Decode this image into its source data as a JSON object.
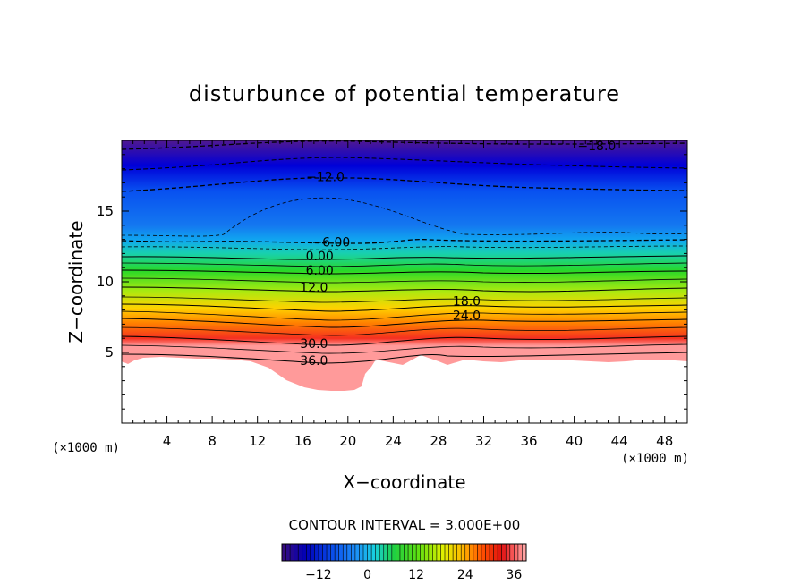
{
  "chart_data": {
    "type": "contour",
    "title": "disturbunce of potential temperature",
    "xlabel": "X−coordinate",
    "ylabel": "Z−coordinate",
    "x_unit_label": "(×1000 m)",
    "y_unit_label": "(×1000 m)",
    "xlim": [
      0,
      50
    ],
    "ylim": [
      0,
      20
    ],
    "x_ticks": [
      "4",
      "8",
      "12",
      "16",
      "20",
      "24",
      "28",
      "32",
      "36",
      "40",
      "44",
      "48"
    ],
    "y_ticks": [
      "5",
      "10",
      "15"
    ],
    "contour_interval_text": "CONTOUR INTERVAL = 3.000E+00",
    "contour_interval": 3.0,
    "value_range": [
      -21,
      39
    ],
    "colorbar_ticks": [
      "−12",
      "0",
      "12",
      "24",
      "36"
    ],
    "contour_labels": [
      {
        "text": "−18.0",
        "x": 42.0,
        "z": 19.5
      },
      {
        "text": "−12.0",
        "x": 18.0,
        "z": 17.3
      },
      {
        "text": "−6.00",
        "x": 18.5,
        "z": 12.7
      },
      {
        "text": "0.00",
        "x": 17.5,
        "z": 11.7
      },
      {
        "text": "6.00",
        "x": 17.5,
        "z": 10.7
      },
      {
        "text": "12.0",
        "x": 17.0,
        "z": 9.5
      },
      {
        "text": "18.0",
        "x": 30.5,
        "z": 8.5
      },
      {
        "text": "24.0",
        "x": 30.5,
        "z": 7.5
      },
      {
        "text": "30.0",
        "x": 17.0,
        "z": 5.5
      },
      {
        "text": "36.0",
        "x": 17.0,
        "z": 4.3
      }
    ],
    "grid": false
  }
}
